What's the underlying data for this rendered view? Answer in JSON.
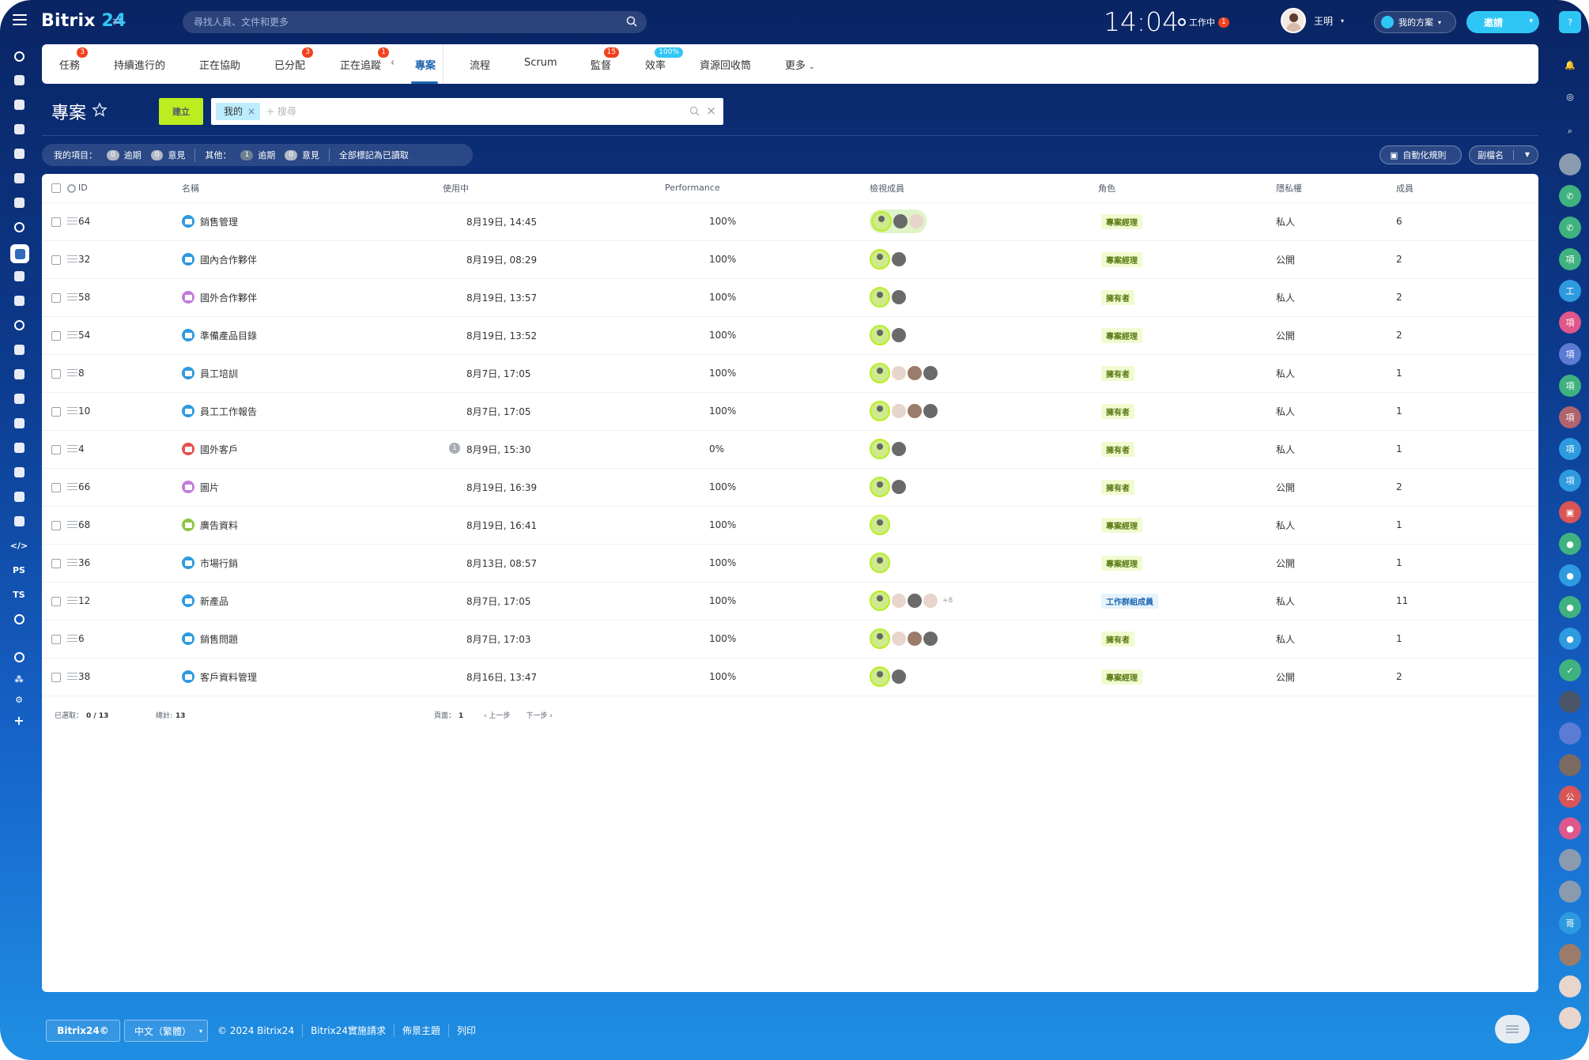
{
  "app": {
    "brand_name": "Bitrix",
    "brand_num": "24"
  },
  "search": {
    "placeholder": "尋找人員、文件和更多"
  },
  "clock": "14:04",
  "work_status": {
    "label": "工作中",
    "count": "1"
  },
  "user": {
    "name": "王明"
  },
  "plan_label": "我的方案",
  "invite_label": "邀請",
  "tabs": [
    {
      "label": "任務",
      "badge": "3"
    },
    {
      "label": "持續進行的",
      "badge": ""
    },
    {
      "label": "正在協助",
      "badge": ""
    },
    {
      "label": "已分配",
      "badge": "3"
    },
    {
      "label": "正在追蹤",
      "badge": "1"
    },
    {
      "label": "專案",
      "badge": ""
    },
    {
      "label": "流程",
      "badge": ""
    },
    {
      "label": "Scrum",
      "badge": ""
    },
    {
      "label": "監督",
      "badge": "15"
    },
    {
      "label": "效率",
      "badge": "100%"
    },
    {
      "label": "資源回收筒",
      "badge": ""
    },
    {
      "label": "更多",
      "badge": ""
    }
  ],
  "page": {
    "title": "專案",
    "create_label": "建立"
  },
  "filter": {
    "chip": "我的",
    "placeholder": "+ 搜尋"
  },
  "counters": {
    "mine_label": "我的項目：",
    "mine_overdue_count": "0",
    "overdue_label": "逾期",
    "mine_comments_count": "0",
    "comments_label": "意見",
    "other_label": "其他：",
    "other_overdue_count": "1",
    "other_comments_count": "0",
    "mark_read": "全部標記為已讀取"
  },
  "actions": {
    "automation": "自動化規則",
    "subtag": "副檔名"
  },
  "columns": [
    "ID",
    "名稱",
    "使用中",
    "Performance",
    "檢視成員",
    "角色",
    "隱私權",
    "成員"
  ],
  "rows": [
    {
      "id": "64",
      "name": "銷售管理",
      "icon_color": "#2e9ae0",
      "active": "8月19日, 14:45",
      "badge": "",
      "performance": "100%",
      "avatars": "group3",
      "role": "專案經理",
      "role_type": "pm",
      "privacy": "私人",
      "members": "6"
    },
    {
      "id": "32",
      "name": "國內合作夥伴",
      "icon_color": "#2e9ae0",
      "active": "8月19日, 08:29",
      "badge": "",
      "performance": "100%",
      "avatars": "two",
      "role": "專案經理",
      "role_type": "pm",
      "privacy": "公開",
      "members": "2"
    },
    {
      "id": "58",
      "name": "國外合作夥伴",
      "icon_color": "#c37cd8",
      "active": "8月19日, 13:57",
      "badge": "",
      "performance": "100%",
      "avatars": "two",
      "role": "擁有者",
      "role_type": "owner",
      "privacy": "私人",
      "members": "2"
    },
    {
      "id": "54",
      "name": "準備產品目錄",
      "icon_color": "#2e9ae0",
      "active": "8月19日, 13:52",
      "badge": "",
      "performance": "100%",
      "avatars": "two",
      "role": "專案經理",
      "role_type": "pm",
      "privacy": "公開",
      "members": "2"
    },
    {
      "id": "8",
      "name": "員工培訓",
      "icon_color": "#2e9ae0",
      "active": "8月7日, 17:05",
      "badge": "",
      "performance": "100%",
      "avatars": "four",
      "role": "擁有者",
      "role_type": "owner",
      "privacy": "私人",
      "members": "1"
    },
    {
      "id": "10",
      "name": "員工工作報告",
      "icon_color": "#2e9ae0",
      "active": "8月7日, 17:05",
      "badge": "",
      "performance": "100%",
      "avatars": "four",
      "role": "擁有者",
      "role_type": "owner",
      "privacy": "私人",
      "members": "1"
    },
    {
      "id": "4",
      "name": "國外客戶",
      "icon_color": "#e34f4f",
      "active": "8月9日, 15:30",
      "badge": "1",
      "performance": "0%",
      "avatars": "two",
      "role": "擁有者",
      "role_type": "owner",
      "privacy": "私人",
      "members": "1"
    },
    {
      "id": "66",
      "name": "圖片",
      "icon_color": "#c37cd8",
      "active": "8月19日, 16:39",
      "badge": "",
      "performance": "100%",
      "avatars": "two",
      "role": "擁有者",
      "role_type": "owner",
      "privacy": "公開",
      "members": "2"
    },
    {
      "id": "68",
      "name": "廣告資料",
      "icon_color": "#8cc63f",
      "active": "8月19日, 16:41",
      "badge": "",
      "performance": "100%",
      "avatars": "one",
      "role": "專案經理",
      "role_type": "pm",
      "privacy": "私人",
      "members": "1"
    },
    {
      "id": "36",
      "name": "市場行銷",
      "icon_color": "#2e9ae0",
      "active": "8月13日, 08:57",
      "badge": "",
      "performance": "100%",
      "avatars": "one",
      "role": "專案經理",
      "role_type": "pm",
      "privacy": "公開",
      "members": "1"
    },
    {
      "id": "12",
      "name": "新產品",
      "icon_color": "#2e9ae0",
      "active": "8月7日, 17:05",
      "badge": "",
      "performance": "100%",
      "avatars": "many",
      "more": "+8",
      "role": "工作群組成員",
      "role_type": "member",
      "privacy": "私人",
      "members": "11"
    },
    {
      "id": "6",
      "name": "銷售問題",
      "icon_color": "#2e9ae0",
      "active": "8月7日, 17:03",
      "badge": "",
      "performance": "100%",
      "avatars": "four",
      "role": "擁有者",
      "role_type": "owner",
      "privacy": "私人",
      "members": "1"
    },
    {
      "id": "38",
      "name": "客戶資料管理",
      "icon_color": "#2e9ae0",
      "active": "8月16日, 13:47",
      "badge": "",
      "performance": "100%",
      "avatars": "two",
      "role": "專案經理",
      "role_type": "pm",
      "privacy": "公開",
      "members": "2"
    }
  ],
  "table_footer": {
    "selected_label": "已選取：",
    "selected_value": "0 / 13",
    "total_label": "總計:",
    "total_value": "13",
    "page_label": "頁面：",
    "page_value": "1",
    "prev": "上一步",
    "next": "下一步"
  },
  "bottom": {
    "logo": "Bitrix24©",
    "lang": "中文（繁體）",
    "copyright": "© 2024 Bitrix24",
    "links": [
      "Bitrix24實施請求",
      "佈景主題",
      "列印"
    ]
  },
  "left_rail": [
    "PS",
    "TS"
  ],
  "colors": {
    "accent": "#2fc6f6",
    "create": "#bbed21",
    "active_tab": "#2067b0"
  }
}
